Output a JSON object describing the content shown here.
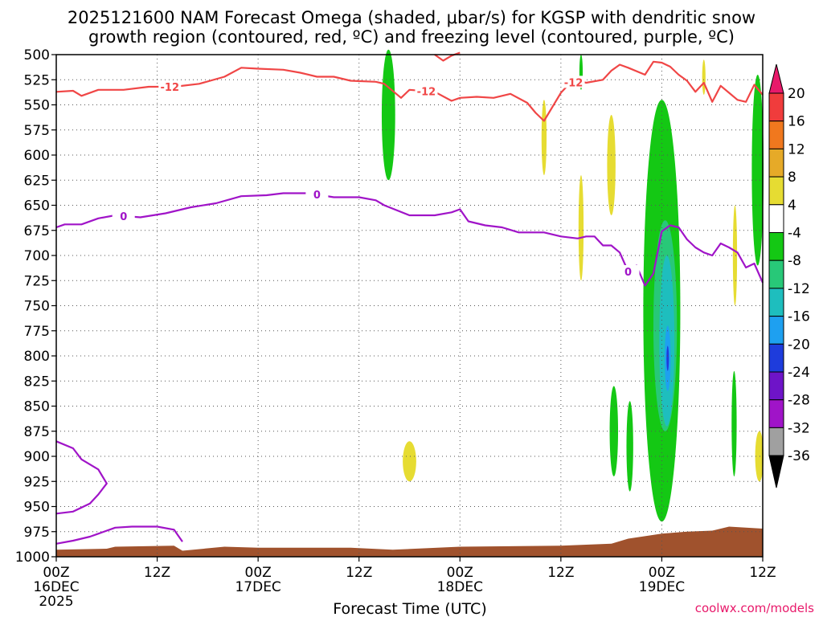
{
  "chart_data": {
    "type": "heatmap",
    "title_lines": [
      "2025121600 NAM Forecast Omega (shaded, μbar/s) for KGSP with dendritic snow",
      "growth region (contoured, red, ºC) and freezing level (contoured, purple, ºC)"
    ],
    "xlabel": "Forecast Time (UTC)",
    "credit": "coolwx.com/models",
    "xlim_hours": [
      0,
      84
    ],
    "ylim_hPa": [
      1000,
      500
    ],
    "y_ticks": [
      500,
      525,
      550,
      575,
      600,
      625,
      650,
      675,
      700,
      725,
      750,
      775,
      800,
      825,
      850,
      875,
      900,
      925,
      950,
      975,
      1000
    ],
    "x_ticks": [
      {
        "h": 0,
        "lines": [
          "00Z",
          "16DEC",
          "2025"
        ]
      },
      {
        "h": 12,
        "lines": [
          "12Z"
        ]
      },
      {
        "h": 24,
        "lines": [
          "00Z",
          "17DEC"
        ]
      },
      {
        "h": 36,
        "lines": [
          "12Z"
        ]
      },
      {
        "h": 48,
        "lines": [
          "00Z",
          "18DEC"
        ]
      },
      {
        "h": 60,
        "lines": [
          "12Z"
        ]
      },
      {
        "h": 72,
        "lines": [
          "00Z",
          "19DEC"
        ]
      },
      {
        "h": 84,
        "lines": [
          "12Z"
        ]
      }
    ],
    "grid": true,
    "colorbar": {
      "labels": [
        "20",
        "16",
        "12",
        "8",
        "4",
        "-4",
        "-8",
        "-12",
        "-16",
        "-20",
        "-24",
        "-28",
        "-32",
        "-36"
      ],
      "colors": [
        "#e8196a",
        "#f03c3c",
        "#f0781e",
        "#e6aa28",
        "#e6dc32",
        "#ffffff",
        "#14c814",
        "#28c878",
        "#1ebebe",
        "#1ea0f0",
        "#1e3cdc",
        "#6e14c8",
        "#a014c8",
        "#a0a0a0",
        "#000000"
      ]
    },
    "colors": {
      "dgz_contour": "#f04646",
      "freezing_contour": "#a014c8",
      "ground": "#a0522d"
    },
    "dgz_contour": {
      "level_label": "-12",
      "points": [
        [
          0,
          537
        ],
        [
          2,
          536
        ],
        [
          3,
          541
        ],
        [
          5,
          535
        ],
        [
          8,
          535
        ],
        [
          11,
          532
        ],
        [
          14,
          532
        ],
        [
          17,
          529
        ],
        [
          20,
          522
        ],
        [
          22,
          513
        ],
        [
          24,
          514
        ],
        [
          27,
          515
        ],
        [
          29,
          518
        ],
        [
          31,
          522
        ],
        [
          33,
          522
        ],
        [
          35,
          526
        ],
        [
          38,
          527
        ],
        [
          39,
          529
        ],
        [
          41,
          543
        ],
        [
          42,
          535
        ],
        [
          45,
          537
        ],
        [
          47,
          546
        ],
        [
          48,
          543
        ],
        [
          50,
          542
        ],
        [
          52,
          543
        ],
        [
          54,
          539
        ],
        [
          56,
          548
        ],
        [
          57,
          558
        ],
        [
          58,
          566
        ],
        [
          59,
          552
        ],
        [
          60,
          538
        ],
        [
          61,
          529
        ],
        [
          62,
          526
        ],
        [
          63,
          528
        ],
        [
          65,
          525
        ],
        [
          66,
          516
        ],
        [
          67,
          510
        ],
        [
          68,
          513
        ],
        [
          70,
          520
        ],
        [
          71,
          507
        ],
        [
          72,
          508
        ],
        [
          73,
          512
        ],
        [
          74,
          520
        ],
        [
          75,
          526
        ],
        [
          76,
          537
        ],
        [
          77,
          528
        ],
        [
          78,
          547
        ],
        [
          79,
          531
        ],
        [
          80,
          538
        ],
        [
          81,
          545
        ],
        [
          82,
          547
        ],
        [
          83,
          530
        ],
        [
          84,
          540
        ]
      ],
      "upper_points": [
        [
          45,
          500
        ],
        [
          46,
          506
        ],
        [
          47,
          501
        ],
        [
          48,
          498
        ]
      ],
      "label_hours": [
        13.5,
        44,
        61.5
      ]
    },
    "freezing_contour": {
      "level_label": "0",
      "points": [
        [
          0,
          672
        ],
        [
          1,
          669
        ],
        [
          3,
          669
        ],
        [
          5,
          663
        ],
        [
          7,
          660
        ],
        [
          10,
          662
        ],
        [
          13,
          658
        ],
        [
          16,
          652
        ],
        [
          19,
          648
        ],
        [
          22,
          641
        ],
        [
          25,
          640
        ],
        [
          27,
          638
        ],
        [
          30,
          638
        ],
        [
          33,
          642
        ],
        [
          36,
          642
        ],
        [
          38,
          645
        ],
        [
          39,
          650
        ],
        [
          42,
          660
        ],
        [
          45,
          660
        ],
        [
          47,
          657
        ],
        [
          48,
          654
        ],
        [
          49,
          666
        ],
        [
          51,
          670
        ],
        [
          53,
          672
        ],
        [
          55,
          677
        ],
        [
          58,
          677
        ],
        [
          60,
          681
        ],
        [
          62,
          683
        ],
        [
          63,
          681
        ],
        [
          64,
          681
        ],
        [
          65,
          690
        ],
        [
          66,
          690
        ],
        [
          67,
          697
        ],
        [
          68,
          716
        ],
        [
          69,
          710
        ],
        [
          70,
          730
        ],
        [
          71,
          718
        ],
        [
          72,
          676
        ],
        [
          73,
          670
        ],
        [
          74,
          672
        ],
        [
          75,
          684
        ],
        [
          76,
          692
        ],
        [
          77,
          697
        ],
        [
          78,
          700
        ],
        [
          79,
          688
        ],
        [
          80,
          692
        ],
        [
          81,
          697
        ],
        [
          82,
          712
        ],
        [
          83,
          708
        ],
        [
          84,
          727
        ]
      ],
      "loop_points": [
        [
          0,
          885
        ],
        [
          2,
          892
        ],
        [
          3,
          903
        ],
        [
          5,
          913
        ],
        [
          6,
          927
        ],
        [
          5,
          938
        ],
        [
          4,
          947
        ],
        [
          2,
          955
        ],
        [
          0,
          957
        ]
      ],
      "low_points": [
        [
          0,
          987
        ],
        [
          2,
          984
        ],
        [
          4,
          980
        ],
        [
          5,
          977
        ],
        [
          7,
          971
        ],
        [
          9,
          970
        ],
        [
          12,
          970
        ],
        [
          14,
          973
        ],
        [
          15,
          985
        ]
      ],
      "label_hours": [
        8,
        31,
        68
      ]
    },
    "ground_top_points": [
      [
        0,
        993
      ],
      [
        6,
        992
      ],
      [
        7,
        990
      ],
      [
        14,
        989
      ],
      [
        15,
        994
      ],
      [
        20,
        990
      ],
      [
        24,
        991
      ],
      [
        35,
        991
      ],
      [
        40,
        993
      ],
      [
        48,
        990
      ],
      [
        60,
        989
      ],
      [
        66,
        987
      ],
      [
        68,
        982
      ],
      [
        72,
        977
      ],
      [
        75,
        975
      ],
      [
        78,
        974
      ],
      [
        80,
        970
      ],
      [
        84,
        972
      ]
    ],
    "omega_shading": [
      {
        "kind": "ellipse",
        "h": 39.5,
        "p_top": 495,
        "p_bot": 625,
        "half_h": 0.8,
        "level": "-4 to -8"
      },
      {
        "kind": "ellipse",
        "h": 58.0,
        "p_top": 545,
        "p_bot": 620,
        "half_h": 0.3,
        "level": "4 to 8"
      },
      {
        "kind": "ellipse",
        "h": 62.4,
        "p_top": 500,
        "p_bot": 535,
        "half_h": 0.2,
        "level": "-4 to -8"
      },
      {
        "kind": "ellipse",
        "h": 62.4,
        "p_top": 620,
        "p_bot": 725,
        "half_h": 0.3,
        "level": "4 to 8"
      },
      {
        "kind": "ellipse",
        "h": 66.0,
        "p_top": 560,
        "p_bot": 660,
        "half_h": 0.5,
        "level": "4 to 8"
      },
      {
        "kind": "ellipse",
        "h": 66.3,
        "p_top": 830,
        "p_bot": 920,
        "half_h": 0.5,
        "level": "-4 to -8"
      },
      {
        "kind": "ellipse",
        "h": 68.2,
        "p_top": 845,
        "p_bot": 935,
        "half_h": 0.4,
        "level": "-4 to -8"
      },
      {
        "kind": "ellipse",
        "h": 42.0,
        "p_top": 885,
        "p_bot": 925,
        "half_h": 0.8,
        "level": "4 to 8"
      },
      {
        "kind": "ellipse",
        "h": 80.7,
        "p_top": 650,
        "p_bot": 750,
        "half_h": 0.25,
        "level": "4 to 8"
      },
      {
        "kind": "ellipse",
        "h": 80.6,
        "p_top": 815,
        "p_bot": 920,
        "half_h": 0.3,
        "level": "-4 to -8"
      },
      {
        "kind": "ellipse",
        "h": 83.6,
        "p_top": 875,
        "p_bot": 925,
        "half_h": 0.5,
        "level": "4 to 8"
      },
      {
        "kind": "ellipse",
        "h": 83.4,
        "p_top": 520,
        "p_bot": 710,
        "half_h": 0.7,
        "level": "-4 to -8"
      },
      {
        "kind": "ellipse",
        "h": 77.0,
        "p_top": 505,
        "p_bot": 540,
        "half_h": 0.2,
        "level": "4 to 8"
      },
      {
        "kind": "ellipse",
        "h": 72.0,
        "p_top": 545,
        "p_bot": 965,
        "half_h": 2.2,
        "level": "-4 to -8"
      },
      {
        "kind": "ellipse",
        "h": 72.4,
        "p_top": 665,
        "p_bot": 875,
        "half_h": 1.4,
        "level": "-8 to -12"
      },
      {
        "kind": "ellipse",
        "h": 72.6,
        "p_top": 700,
        "p_bot": 870,
        "half_h": 0.9,
        "level": "-12 to -16"
      },
      {
        "kind": "ellipse",
        "h": 72.7,
        "p_top": 770,
        "p_bot": 835,
        "half_h": 0.35,
        "level": "-16 to -20"
      },
      {
        "kind": "ellipse",
        "h": 72.7,
        "p_top": 790,
        "p_bot": 815,
        "half_h": 0.12,
        "level": "-20 to -24"
      }
    ]
  }
}
